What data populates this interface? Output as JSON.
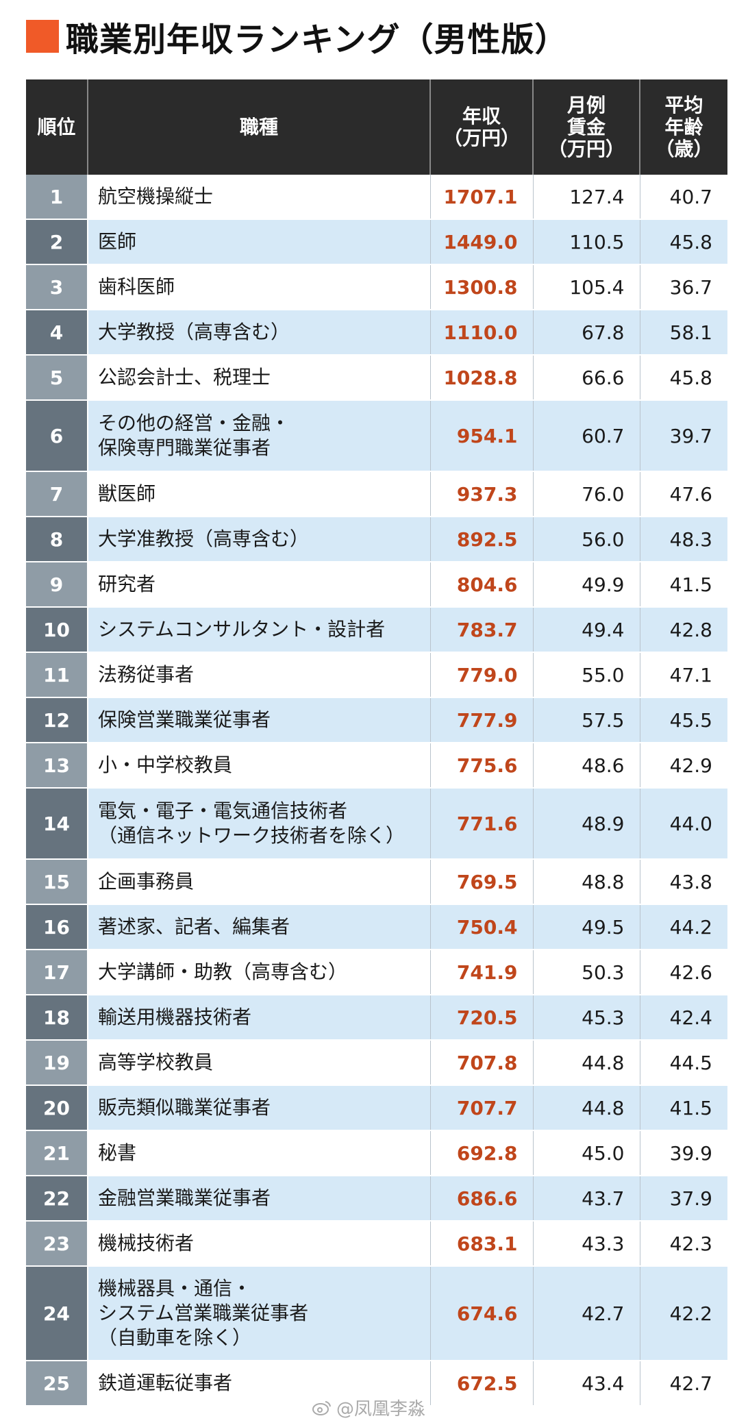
{
  "title": "職業別年収ランキング（男性版）",
  "accent_color": "#f05a28",
  "headers": {
    "rank": "順位",
    "job": "職種",
    "income": "年収\n（万円）",
    "monthly": "月例\n賃金\n（万円）",
    "age": "平均\n年齢\n（歳）"
  },
  "rows": [
    {
      "rank": "1",
      "job": "航空機操縦士",
      "income": "1707.1",
      "monthly": "127.4",
      "age": "40.7"
    },
    {
      "rank": "2",
      "job": "医師",
      "income": "1449.0",
      "monthly": "110.5",
      "age": "45.8"
    },
    {
      "rank": "3",
      "job": "歯科医師",
      "income": "1300.8",
      "monthly": "105.4",
      "age": "36.7"
    },
    {
      "rank": "4",
      "job": "大学教授（高専含む）",
      "income": "1110.0",
      "monthly": "67.8",
      "age": "58.1"
    },
    {
      "rank": "5",
      "job": "公認会計士、税理士",
      "income": "1028.8",
      "monthly": "66.6",
      "age": "45.8"
    },
    {
      "rank": "6",
      "job": "その他の経営・金融・\n保険専門職業従事者",
      "income": "954.1",
      "monthly": "60.7",
      "age": "39.7"
    },
    {
      "rank": "7",
      "job": "獣医師",
      "income": "937.3",
      "monthly": "76.0",
      "age": "47.6"
    },
    {
      "rank": "8",
      "job": "大学准教授（高専含む）",
      "income": "892.5",
      "monthly": "56.0",
      "age": "48.3"
    },
    {
      "rank": "9",
      "job": "研究者",
      "income": "804.6",
      "monthly": "49.9",
      "age": "41.5"
    },
    {
      "rank": "10",
      "job": "システムコンサルタント・設計者",
      "income": "783.7",
      "monthly": "49.4",
      "age": "42.8"
    },
    {
      "rank": "11",
      "job": "法務従事者",
      "income": "779.0",
      "monthly": "55.0",
      "age": "47.1"
    },
    {
      "rank": "12",
      "job": "保険営業職業従事者",
      "income": "777.9",
      "monthly": "57.5",
      "age": "45.5"
    },
    {
      "rank": "13",
      "job": "小・中学校教員",
      "income": "775.6",
      "monthly": "48.6",
      "age": "42.9"
    },
    {
      "rank": "14",
      "job": "電気・電子・電気通信技術者\n（通信ネットワーク技術者を除く）",
      "income": "771.6",
      "monthly": "48.9",
      "age": "44.0"
    },
    {
      "rank": "15",
      "job": "企画事務員",
      "income": "769.5",
      "monthly": "48.8",
      "age": "43.8"
    },
    {
      "rank": "16",
      "job": "著述家、記者、編集者",
      "income": "750.4",
      "monthly": "49.5",
      "age": "44.2"
    },
    {
      "rank": "17",
      "job": "大学講師・助教（高専含む）",
      "income": "741.9",
      "monthly": "50.3",
      "age": "42.6"
    },
    {
      "rank": "18",
      "job": "輸送用機器技術者",
      "income": "720.5",
      "monthly": "45.3",
      "age": "42.4"
    },
    {
      "rank": "19",
      "job": "高等学校教員",
      "income": "707.8",
      "monthly": "44.8",
      "age": "44.5"
    },
    {
      "rank": "20",
      "job": "販売類似職業従事者",
      "income": "707.7",
      "monthly": "44.8",
      "age": "41.5"
    },
    {
      "rank": "21",
      "job": "秘書",
      "income": "692.8",
      "monthly": "45.0",
      "age": "39.9"
    },
    {
      "rank": "22",
      "job": "金融営業職業従事者",
      "income": "686.6",
      "monthly": "43.7",
      "age": "37.9"
    },
    {
      "rank": "23",
      "job": "機械技術者",
      "income": "683.1",
      "monthly": "43.3",
      "age": "42.3"
    },
    {
      "rank": "24",
      "job": "機械器具・通信・\nシステム営業職業従事者\n（自動車を除く）",
      "income": "674.6",
      "monthly": "42.7",
      "age": "42.2"
    },
    {
      "rank": "25",
      "job": "鉄道運転従事者",
      "income": "672.5",
      "monthly": "43.4",
      "age": "42.7"
    }
  ],
  "watermark": "@凤凰李淼"
}
